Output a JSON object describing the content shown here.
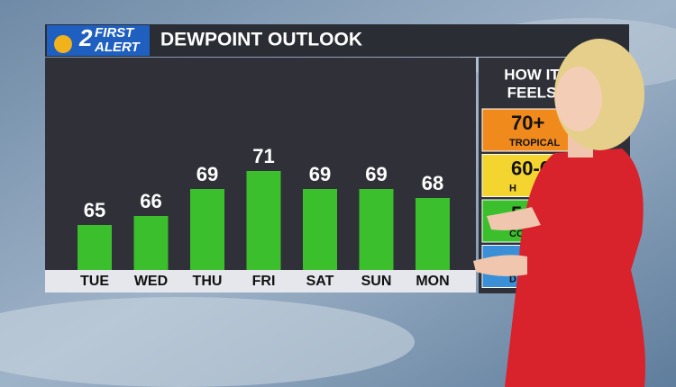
{
  "header": {
    "logo_number": "2",
    "logo_text": [
      "FIRST",
      "ALERT"
    ],
    "title": "DEWPOINT OUTLOOK"
  },
  "chart_data": {
    "type": "bar",
    "categories": [
      "TUE",
      "WED",
      "THU",
      "FRI",
      "SAT",
      "SUN",
      "MON"
    ],
    "values": [
      65,
      66,
      69,
      71,
      69,
      69,
      68
    ],
    "color": "#3cbf2c"
  },
  "legend_panel": {
    "title_lines": [
      "HOW IT",
      "FEELS"
    ],
    "items": [
      {
        "label": "70+",
        "sublabel": "TROPICAL",
        "color": "#f08a1c"
      },
      {
        "label": "60-6",
        "sublabel": "H",
        "color": "#f4d42e"
      },
      {
        "label": "5",
        "sublabel": "COM",
        "color": "#3cbf2c"
      },
      {
        "sublabel": "D",
        "color": "#3a8fd6"
      }
    ]
  }
}
